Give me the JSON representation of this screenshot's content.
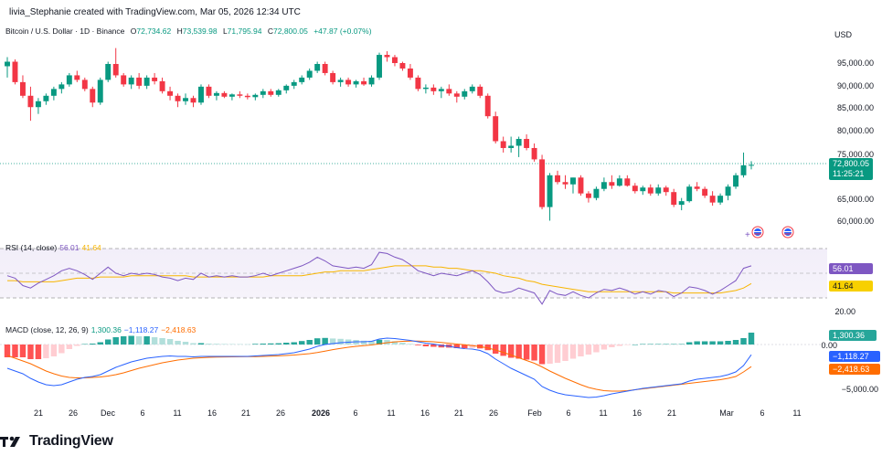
{
  "header": {
    "text": "livia_Stephanie created with TradingView.com, Mar 05, 2026 12:34 UTC"
  },
  "symbol": {
    "name": "Bitcoin / U.S. Dollar · 1D · Binance",
    "o_label": "O",
    "o": "72,734.62",
    "h_label": "H",
    "h": "73,539.98",
    "l_label": "L",
    "l": "71,795.94",
    "c_label": "C",
    "c": "72,800.05",
    "change": "+47.87 (+0.07%)"
  },
  "currency": "USD",
  "price_axis": [
    "95,000.00",
    "90,000.00",
    "85,000.00",
    "80,000.00",
    "75,000.00",
    "65,000.00",
    "60,000.00"
  ],
  "price_tag": {
    "price": "72,800.05",
    "countdown": "11:25:21"
  },
  "rsi": {
    "label": "RSI (14, close)",
    "rsi_value": "56.01",
    "ma_value": "41.64",
    "axis": [
      "20.00"
    ],
    "tag_rsi": "56.01",
    "tag_ma": "41.64"
  },
  "macd": {
    "label": "MACD (close, 12, 26, 9)",
    "hist": "1,300.36",
    "macd": "−1,118.27",
    "signal": "−2,418.63",
    "axis": [
      "0.00",
      "−5,000.00"
    ],
    "tag_hist": "1,300.36",
    "tag_macd": "−1,118.27",
    "tag_signal": "−2,418.63"
  },
  "time_axis": [
    {
      "t": "21",
      "b": false
    },
    {
      "t": "26",
      "b": false
    },
    {
      "t": "Dec",
      "b": false
    },
    {
      "t": "6",
      "b": false
    },
    {
      "t": "11",
      "b": false
    },
    {
      "t": "16",
      "b": false
    },
    {
      "t": "21",
      "b": false
    },
    {
      "t": "26",
      "b": false
    },
    {
      "t": "2026",
      "b": true
    },
    {
      "t": "6",
      "b": false
    },
    {
      "t": "11",
      "b": false
    },
    {
      "t": "16",
      "b": false
    },
    {
      "t": "21",
      "b": false
    },
    {
      "t": "26",
      "b": false
    },
    {
      "t": "Feb",
      "b": false
    },
    {
      "t": "6",
      "b": false
    },
    {
      "t": "11",
      "b": false
    },
    {
      "t": "16",
      "b": false
    },
    {
      "t": "21",
      "b": false
    },
    {
      "t": "Mar",
      "b": false
    },
    {
      "t": "6",
      "b": false
    },
    {
      "t": "11",
      "b": false
    }
  ],
  "brand": {
    "name": "TradingView"
  },
  "colors": {
    "up": "#089981",
    "down": "#f23645",
    "rsi": "#7e57c2",
    "rsi_ma": "#f7b500",
    "macd": "#2962ff",
    "signal": "#ff6d00"
  },
  "candles": [
    [
      94500,
      96500,
      92000,
      95500
    ],
    [
      95500,
      96000,
      90500,
      91000
    ],
    [
      91000,
      92500,
      87500,
      88000
    ],
    [
      88000,
      90000,
      82500,
      85500
    ],
    [
      85500,
      87500,
      84000,
      86800
    ],
    [
      86800,
      88500,
      86000,
      88000
    ],
    [
      88000,
      90000,
      87000,
      89500
    ],
    [
      89500,
      91000,
      88500,
      90500
    ],
    [
      90500,
      93000,
      90000,
      92500
    ],
    [
      92500,
      93500,
      91000,
      91500
    ],
    [
      91500,
      92000,
      89000,
      89500
    ],
    [
      89500,
      90000,
      85500,
      86500
    ],
    [
      86500,
      92000,
      86000,
      91500
    ],
    [
      91500,
      95500,
      91000,
      95000
    ],
    [
      95000,
      98500,
      92000,
      92500
    ],
    [
      92500,
      93000,
      90000,
      90500
    ],
    [
      90500,
      92500,
      89500,
      92000
    ],
    [
      92000,
      93000,
      89500,
      90200
    ],
    [
      90200,
      92500,
      89500,
      92000
    ],
    [
      92000,
      93000,
      90500,
      91200
    ],
    [
      91200,
      92000,
      88500,
      89000
    ],
    [
      89000,
      90000,
      87000,
      88000
    ],
    [
      88000,
      88500,
      85500,
      86800
    ],
    [
      86800,
      88500,
      86000,
      87500
    ],
    [
      87500,
      88000,
      85500,
      86500
    ],
    [
      86500,
      90500,
      86000,
      90000
    ],
    [
      90000,
      90500,
      87500,
      88000
    ],
    [
      88000,
      89000,
      87000,
      88600
    ],
    [
      88600,
      89000,
      87500,
      87800
    ],
    [
      87800,
      88500,
      87000,
      88300
    ],
    [
      88300,
      89000,
      87500,
      88000
    ],
    [
      88000,
      88500,
      87200,
      87700
    ],
    [
      87700,
      88500,
      87000,
      88200
    ],
    [
      88200,
      89500,
      87500,
      89000
    ],
    [
      89000,
      89500,
      87800,
      88200
    ],
    [
      88200,
      89500,
      87800,
      89200
    ],
    [
      89200,
      90500,
      88500,
      90200
    ],
    [
      90200,
      91500,
      89500,
      91000
    ],
    [
      91000,
      92500,
      90500,
      92000
    ],
    [
      92000,
      94000,
      91500,
      93500
    ],
    [
      93500,
      95500,
      93000,
      95000
    ],
    [
      95000,
      95500,
      92500,
      93000
    ],
    [
      93000,
      93500,
      90500,
      91000
    ],
    [
      91000,
      92000,
      90000,
      91500
    ],
    [
      91500,
      92000,
      90000,
      90500
    ],
    [
      90500,
      91500,
      89800,
      91200
    ],
    [
      91200,
      92000,
      90200,
      90500
    ],
    [
      90500,
      92500,
      90000,
      92000
    ],
    [
      92000,
      97500,
      91500,
      97000
    ],
    [
      97000,
      97800,
      95500,
      96500
    ],
    [
      96500,
      97000,
      94500,
      95200
    ],
    [
      95200,
      95500,
      93500,
      94000
    ],
    [
      94000,
      95000,
      91500,
      92000
    ],
    [
      92000,
      92500,
      89000,
      89500
    ],
    [
      89500,
      90500,
      88500,
      89800
    ],
    [
      89800,
      90500,
      88200,
      89000
    ],
    [
      89000,
      90000,
      87500,
      89500
    ],
    [
      89500,
      90500,
      88000,
      88500
    ],
    [
      88500,
      89000,
      86500,
      87800
    ],
    [
      87800,
      89500,
      87200,
      89000
    ],
    [
      89000,
      90500,
      88500,
      90000
    ],
    [
      90000,
      90500,
      87500,
      88000
    ],
    [
      88000,
      88500,
      83000,
      83500
    ],
    [
      83500,
      84500,
      77500,
      78000
    ],
    [
      78000,
      79000,
      75500,
      76500
    ],
    [
      76500,
      79000,
      75500,
      77000
    ],
    [
      77000,
      79000,
      74500,
      78500
    ],
    [
      78500,
      79500,
      76000,
      76500
    ],
    [
      76500,
      77500,
      73500,
      74000
    ],
    [
      74000,
      75000,
      63000,
      63500
    ],
    [
      63500,
      71000,
      60500,
      70500
    ],
    [
      70500,
      71500,
      68500,
      69000
    ],
    [
      69000,
      70500,
      67500,
      68500
    ],
    [
      68500,
      70000,
      66500,
      70000
    ],
    [
      70000,
      70500,
      66000,
      66500
    ],
    [
      66500,
      67000,
      64500,
      65500
    ],
    [
      65500,
      68000,
      65000,
      67500
    ],
    [
      67500,
      70000,
      67000,
      69000
    ],
    [
      69000,
      70500,
      67500,
      68200
    ],
    [
      68200,
      70500,
      68000,
      69800
    ],
    [
      69800,
      70500,
      68000,
      68200
    ],
    [
      68200,
      68800,
      66500,
      67000
    ],
    [
      67000,
      68200,
      66200,
      67800
    ],
    [
      67800,
      68500,
      66000,
      66500
    ],
    [
      66500,
      68500,
      66000,
      67800
    ],
    [
      67800,
      68200,
      66000,
      66800
    ],
    [
      66800,
      67500,
      63500,
      64000
    ],
    [
      64000,
      65500,
      62800,
      64800
    ],
    [
      64800,
      68500,
      64500,
      68000
    ],
    [
      68000,
      69000,
      67000,
      67500
    ],
    [
      67500,
      68000,
      65500,
      66000
    ],
    [
      66000,
      67000,
      63800,
      64500
    ],
    [
      64500,
      66500,
      64000,
      66000
    ],
    [
      66000,
      68500,
      65000,
      68000
    ],
    [
      68000,
      71000,
      67500,
      70500
    ],
    [
      70500,
      75500,
      70000,
      72700
    ],
    [
      72700,
      73600,
      71800,
      72800
    ]
  ],
  "rsi_series": [
    48,
    46,
    40,
    38,
    42,
    45,
    48,
    52,
    54,
    52,
    49,
    45,
    50,
    55,
    50,
    48,
    50,
    49,
    50,
    49,
    47,
    46,
    44,
    46,
    45,
    50,
    47,
    48,
    47,
    48,
    47,
    47,
    48,
    50,
    48,
    50,
    52,
    54,
    56,
    59,
    63,
    60,
    56,
    55,
    54,
    55,
    54,
    57,
    67,
    66,
    63,
    61,
    57,
    52,
    50,
    48,
    50,
    49,
    48,
    50,
    52,
    49,
    43,
    36,
    34,
    35,
    38,
    36,
    34,
    25,
    36,
    33,
    32,
    35,
    32,
    30,
    34,
    37,
    36,
    38,
    36,
    33,
    35,
    33,
    36,
    35,
    31,
    34,
    39,
    38,
    36,
    33,
    36,
    40,
    44,
    54,
    56
  ],
  "rsi_ma_series": [
    44,
    44,
    43,
    43,
    43,
    43,
    43,
    44,
    45,
    46,
    46,
    46,
    47,
    47,
    47,
    47,
    48,
    48,
    48,
    48,
    48,
    48,
    48,
    48,
    47,
    47,
    47,
    47,
    47,
    47,
    47,
    47,
    47,
    47,
    48,
    48,
    48,
    48,
    48,
    49,
    50,
    51,
    51,
    52,
    52,
    52,
    52,
    53,
    54,
    55,
    56,
    56,
    56,
    56,
    56,
    55,
    55,
    54,
    54,
    53,
    52,
    52,
    51,
    50,
    48,
    47,
    46,
    44,
    43,
    41,
    40,
    39,
    38,
    37,
    36,
    35,
    35,
    35,
    35,
    35,
    35,
    35,
    35,
    35,
    35,
    35,
    34,
    34,
    34,
    34,
    34,
    34,
    34,
    35,
    36,
    38,
    41.6
  ],
  "macd_series": [
    -2600,
    -2900,
    -3200,
    -3700,
    -4100,
    -4400,
    -4500,
    -4400,
    -4100,
    -3800,
    -3600,
    -3500,
    -3300,
    -2900,
    -2500,
    -2200,
    -1900,
    -1700,
    -1500,
    -1400,
    -1300,
    -1250,
    -1300,
    -1300,
    -1350,
    -1300,
    -1300,
    -1300,
    -1300,
    -1300,
    -1300,
    -1300,
    -1250,
    -1200,
    -1150,
    -1100,
    -1000,
    -900,
    -700,
    -500,
    -200,
    0,
    100,
    200,
    250,
    300,
    300,
    350,
    600,
    700,
    650,
    550,
    450,
    300,
    150,
    50,
    -100,
    -200,
    -350,
    -450,
    -500,
    -650,
    -1000,
    -1600,
    -2100,
    -2600,
    -3000,
    -3400,
    -3800,
    -4600,
    -5000,
    -5300,
    -5500,
    -5600,
    -5700,
    -5800,
    -5750,
    -5600,
    -5400,
    -5250,
    -5100,
    -4950,
    -4800,
    -4700,
    -4600,
    -4500,
    -4400,
    -4300,
    -4000,
    -3800,
    -3700,
    -3600,
    -3500,
    -3300,
    -3000,
    -2300,
    -1118
  ],
  "signal_series": [
    -1200,
    -1500,
    -1800,
    -2100,
    -2500,
    -2900,
    -3200,
    -3450,
    -3600,
    -3650,
    -3650,
    -3600,
    -3550,
    -3450,
    -3300,
    -3100,
    -2850,
    -2600,
    -2400,
    -2200,
    -2000,
    -1850,
    -1700,
    -1600,
    -1500,
    -1450,
    -1400,
    -1380,
    -1360,
    -1350,
    -1340,
    -1330,
    -1320,
    -1300,
    -1270,
    -1240,
    -1200,
    -1150,
    -1080,
    -1000,
    -880,
    -720,
    -560,
    -420,
    -300,
    -200,
    -120,
    -50,
    80,
    200,
    290,
    350,
    380,
    380,
    350,
    300,
    220,
    140,
    50,
    -30,
    -120,
    -220,
    -380,
    -600,
    -860,
    -1150,
    -1450,
    -1750,
    -2050,
    -2450,
    -2900,
    -3300,
    -3700,
    -4050,
    -4400,
    -4700,
    -4900,
    -5050,
    -5100,
    -5100,
    -5050,
    -4950,
    -4850,
    -4750,
    -4650,
    -4550,
    -4450,
    -4350,
    -4250,
    -4150,
    -4050,
    -3950,
    -3850,
    -3700,
    -3500,
    -3000,
    -2418
  ]
}
